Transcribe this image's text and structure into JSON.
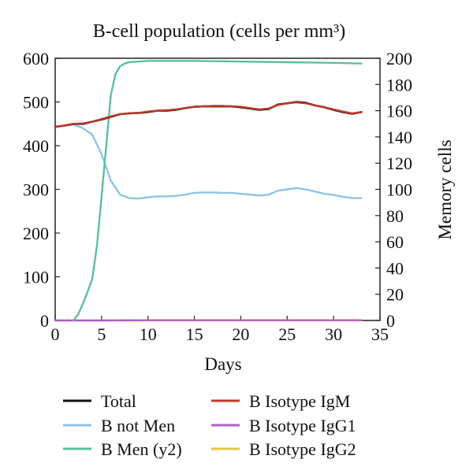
{
  "chart_data": {
    "type": "line",
    "title": "B-cell population (cells per mm³)",
    "xlabel": "Days",
    "ylabel": "",
    "y2label": "Memory cells",
    "xlim": [
      0,
      35
    ],
    "ylim": [
      0,
      600
    ],
    "y2lim": [
      0,
      200
    ],
    "x_ticks": [
      "0",
      "5",
      "10",
      "15",
      "20",
      "25",
      "30",
      "35"
    ],
    "y_ticks": [
      "0",
      "100",
      "200",
      "300",
      "400",
      "500",
      "600"
    ],
    "y2_ticks": [
      "0",
      "20",
      "40",
      "60",
      "80",
      "100",
      "120",
      "140",
      "160",
      "180",
      "200"
    ],
    "grid": false,
    "legend_position": "bottom",
    "series": [
      {
        "name": "Total",
        "color": "#111111",
        "axis": "y",
        "x": [
          0,
          1,
          2,
          3,
          4,
          5,
          6,
          7,
          8,
          9,
          10,
          11,
          12,
          13,
          14,
          15,
          16,
          17,
          18,
          19,
          20,
          21,
          22,
          23,
          24,
          25,
          26,
          27,
          28,
          29,
          30,
          31,
          32,
          33
        ],
        "y": [
          443,
          446,
          450,
          450,
          455,
          460,
          466,
          472,
          474,
          475,
          477,
          480,
          480,
          482,
          486,
          489,
          490,
          490,
          490,
          490,
          488,
          485,
          482,
          484,
          494,
          497,
          500,
          498,
          492,
          488,
          482,
          477,
          473,
          477
        ]
      },
      {
        "name": "B not Men",
        "color": "#8ec4e6",
        "axis": "y",
        "x": [
          0,
          1,
          2,
          3,
          4,
          5,
          6,
          7,
          8,
          9,
          10,
          11,
          12,
          13,
          14,
          15,
          16,
          17,
          18,
          19,
          20,
          21,
          22,
          23,
          24,
          25,
          26,
          27,
          28,
          29,
          30,
          31,
          32,
          33
        ],
        "y": [
          443,
          446,
          448,
          440,
          425,
          380,
          320,
          288,
          280,
          279,
          282,
          284,
          284,
          285,
          288,
          292,
          293,
          293,
          292,
          292,
          290,
          288,
          286,
          288,
          297,
          300,
          303,
          300,
          295,
          290,
          287,
          283,
          280,
          280
        ]
      },
      {
        "name": "B Men (y2)",
        "color": "#5dbf9c",
        "axis": "y2",
        "x": [
          2,
          2.5,
          3,
          3.5,
          4,
          4.5,
          5,
          5.5,
          6,
          6.5,
          7,
          7.5,
          8,
          9,
          10,
          12,
          15,
          20,
          25,
          30,
          33
        ],
        "y": [
          0,
          5,
          13,
          22,
          32,
          57,
          95,
          133,
          172,
          188,
          194,
          196,
          197,
          197.5,
          198,
          198,
          198,
          197.5,
          197,
          196.5,
          196
        ]
      },
      {
        "name": "B Isotype IgM",
        "color": "#c0392b",
        "axis": "y",
        "x": [
          0,
          1,
          2,
          3,
          4,
          5,
          6,
          7,
          8,
          9,
          10,
          11,
          12,
          13,
          14,
          15,
          16,
          17,
          18,
          19,
          20,
          21,
          22,
          23,
          24,
          25,
          26,
          27,
          28,
          29,
          30,
          31,
          32,
          33
        ],
        "y": [
          443,
          446,
          450,
          451,
          455,
          461,
          467,
          472,
          474,
          475,
          478,
          480,
          481,
          483,
          486,
          489,
          490,
          491,
          491,
          490,
          489,
          486,
          483,
          485,
          493,
          497,
          499,
          497,
          492,
          488,
          483,
          478,
          474,
          477
        ]
      },
      {
        "name": "B Isotype IgG1",
        "color": "#b25fc6",
        "axis": "y",
        "x": [
          0,
          5,
          10,
          15,
          20,
          25,
          30,
          33
        ],
        "y": [
          0,
          0,
          0.5,
          0.5,
          0.5,
          0.5,
          0.5,
          0.5
        ]
      },
      {
        "name": "B Isotype IgG2",
        "color": "#e4c744",
        "axis": "y",
        "x": [
          0,
          5,
          10,
          15,
          20,
          25,
          30,
          33
        ],
        "y": [
          0,
          0,
          0,
          0,
          0,
          0,
          0,
          0
        ]
      }
    ]
  }
}
